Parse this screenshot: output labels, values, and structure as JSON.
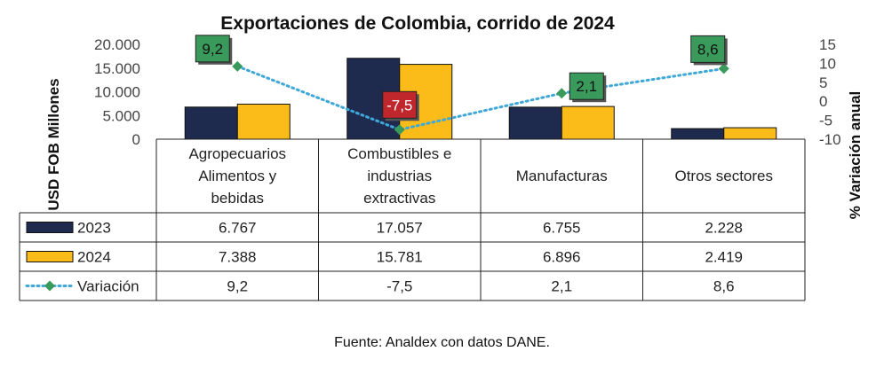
{
  "chart_data": {
    "type": "bar",
    "title": "Exportaciones de Colombia, corrido de 2024",
    "ylabel": "USD FOB Millones",
    "y2label": "% Variación anual",
    "ylim": [
      0,
      20000
    ],
    "y_ticks": [
      "20.000",
      "15.000",
      "10.000",
      "5.000",
      "0"
    ],
    "y_tick_values": [
      20000,
      15000,
      10000,
      5000,
      0
    ],
    "y2lim": [
      -10,
      15
    ],
    "y2_ticks": [
      "15",
      "10",
      "5",
      "0",
      "-5",
      "-10"
    ],
    "y2_tick_values": [
      15,
      10,
      5,
      0,
      -5,
      -10
    ],
    "categories": [
      [
        "Agropecuarios",
        "Alimentos y",
        "bebidas"
      ],
      [
        "Combustibles e",
        "industrias",
        "extractivas"
      ],
      [
        "Manufacturas"
      ],
      [
        "Otros sectores"
      ]
    ],
    "series": [
      {
        "name": "2023",
        "kind": "bar",
        "color": "#1f2a4f",
        "values": [
          6767,
          17057,
          6755,
          2228
        ],
        "labels": [
          "6.767",
          "17.057",
          "6.755",
          "2.228"
        ]
      },
      {
        "name": "2024",
        "kind": "bar",
        "color": "#fbbc19",
        "values": [
          7388,
          15781,
          6896,
          2419
        ],
        "labels": [
          "7.388",
          "15.781",
          "6.896",
          "2.419"
        ]
      },
      {
        "name": "Variación",
        "kind": "line",
        "axis": "secondary",
        "color": "#3fa8d8",
        "marker_color": "#3a9a5b",
        "values": [
          9.2,
          -7.5,
          2.1,
          8.6
        ],
        "labels": [
          "9,2",
          "-7,5",
          "2,1",
          "8,6"
        ]
      }
    ],
    "point_labels": [
      "9,2",
      "-7,5",
      "2,1",
      "8,6"
    ],
    "point_label_colors": {
      "positive": "#3a9a5b",
      "negative": "#c0272d"
    },
    "grid": false,
    "legend": "data-table"
  },
  "footer": {
    "source": "Fuente: Analdex con datos DANE."
  }
}
